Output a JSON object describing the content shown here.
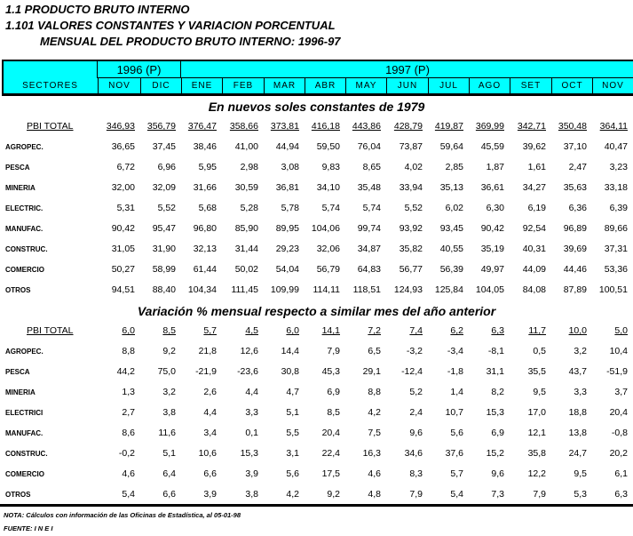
{
  "title": {
    "line1": "1.1  PRODUCTO BRUTO INTERNO",
    "line2": "1.101  VALORES CONSTANTES Y VARIACION PORCENTUAL",
    "line3": "MENSUAL DEL PRODUCTO BRUTO INTERNO: 1996-97"
  },
  "header": {
    "sectores": "SECTORES",
    "year1996": "1996 (P)",
    "year1997": "1997 (P)",
    "months": [
      "NOV",
      "DIC",
      "ENE",
      "FEB",
      "MAR",
      "ABR",
      "MAY",
      "JUN",
      "JUL",
      "AGO",
      "SET",
      "OCT",
      "NOV"
    ],
    "color": "#00ffff"
  },
  "section1": {
    "title": "En nuevos soles constantes de 1979",
    "rows": [
      {
        "label": "PBI TOTAL",
        "values": [
          "346,93",
          "356,79",
          "376,47",
          "358,66",
          "373,81",
          "416,18",
          "443,86",
          "428,79",
          "419,87",
          "369,99",
          "342,71",
          "350,48",
          "364,11"
        ]
      },
      {
        "label": "AGROPEC.",
        "values": [
          "36,65",
          "37,45",
          "38,46",
          "41,00",
          "44,94",
          "59,50",
          "76,04",
          "73,87",
          "59,64",
          "45,59",
          "39,62",
          "37,10",
          "40,47"
        ]
      },
      {
        "label": "PESCA",
        "values": [
          "6,72",
          "6,96",
          "5,95",
          "2,98",
          "3,08",
          "9,83",
          "8,65",
          "4,02",
          "2,85",
          "1,87",
          "1,61",
          "2,47",
          "3,23"
        ]
      },
      {
        "label": "MINERIA",
        "values": [
          "32,00",
          "32,09",
          "31,66",
          "30,59",
          "36,81",
          "34,10",
          "35,48",
          "33,94",
          "35,13",
          "36,61",
          "34,27",
          "35,63",
          "33,18"
        ]
      },
      {
        "label": "ELECTRIC.",
        "values": [
          "5,31",
          "5,52",
          "5,68",
          "5,28",
          "5,78",
          "5,74",
          "5,74",
          "5,52",
          "6,02",
          "6,30",
          "6,19",
          "6,36",
          "6,39"
        ]
      },
      {
        "label": "MANUFAC.",
        "values": [
          "90,42",
          "95,47",
          "96,80",
          "85,90",
          "89,95",
          "104,06",
          "99,74",
          "93,92",
          "93,45",
          "90,42",
          "92,54",
          "96,89",
          "89,66"
        ]
      },
      {
        "label": "CONSTRUC.",
        "values": [
          "31,05",
          "31,90",
          "32,13",
          "31,44",
          "29,23",
          "32,06",
          "34,87",
          "35,82",
          "40,55",
          "35,19",
          "40,31",
          "39,69",
          "37,31"
        ]
      },
      {
        "label": "COMERCIO",
        "values": [
          "50,27",
          "58,99",
          "61,44",
          "50,02",
          "54,04",
          "56,79",
          "64,83",
          "56,77",
          "56,39",
          "49,97",
          "44,09",
          "44,46",
          "53,36"
        ]
      },
      {
        "label": "OTROS",
        "values": [
          "94,51",
          "88,40",
          "104,34",
          "111,45",
          "109,99",
          "114,11",
          "118,51",
          "124,93",
          "125,84",
          "104,05",
          "84,08",
          "87,89",
          "100,51"
        ]
      }
    ]
  },
  "section2": {
    "title": "Variación % mensual respecto a similar mes del año anterior",
    "rows": [
      {
        "label": "PBI TOTAL",
        "values": [
          "6,0",
          "8,5",
          "5,7",
          "4,5",
          "6,0",
          "14,1",
          "7,2",
          "7,4",
          "6,2",
          "6,3",
          "11,7",
          "10,0",
          "5,0"
        ]
      },
      {
        "label": "AGROPEC.",
        "values": [
          "8,8",
          "9,2",
          "21,8",
          "12,6",
          "14,4",
          "7,9",
          "6,5",
          "-3,2",
          "-3,4",
          "-8,1",
          "0,5",
          "3,2",
          "10,4"
        ]
      },
      {
        "label": "PESCA",
        "values": [
          "44,2",
          "75,0",
          "-21,9",
          "-23,6",
          "30,8",
          "45,3",
          "29,1",
          "-12,4",
          "-1,8",
          "31,1",
          "35,5",
          "43,7",
          "-51,9"
        ]
      },
      {
        "label": "MINERIA",
        "values": [
          "1,3",
          "3,2",
          "2,6",
          "4,4",
          "4,7",
          "6,9",
          "8,8",
          "5,2",
          "1,4",
          "8,2",
          "9,5",
          "3,3",
          "3,7"
        ]
      },
      {
        "label": "ELECTRICI",
        "values": [
          "2,7",
          "3,8",
          "4,4",
          "3,3",
          "5,1",
          "8,5",
          "4,2",
          "2,4",
          "10,7",
          "15,3",
          "17,0",
          "18,8",
          "20,4"
        ]
      },
      {
        "label": "MANUFAC.",
        "values": [
          "8,6",
          "11,6",
          "3,4",
          "0,1",
          "5,5",
          "20,4",
          "7,5",
          "9,6",
          "5,6",
          "6,9",
          "12,1",
          "13,8",
          "-0,8"
        ]
      },
      {
        "label": "CONSTRUC.",
        "values": [
          "-0,2",
          "5,1",
          "10,6",
          "15,3",
          "3,1",
          "22,4",
          "16,3",
          "34,6",
          "37,6",
          "15,2",
          "35,8",
          "24,7",
          "20,2"
        ]
      },
      {
        "label": "COMERCIO",
        "values": [
          "4,6",
          "6,4",
          "6,6",
          "3,9",
          "5,6",
          "17,5",
          "4,6",
          "8,3",
          "5,7",
          "9,6",
          "12,2",
          "9,5",
          "6,1"
        ]
      },
      {
        "label": "OTROS",
        "values": [
          "5,4",
          "6,6",
          "3,9",
          "3,8",
          "4,2",
          "9,2",
          "4,8",
          "7,9",
          "5,4",
          "7,3",
          "7,9",
          "5,3",
          "6,3"
        ]
      }
    ]
  },
  "footer": {
    "note": "NOTA: Cálculos con información de las Oficinas de Estadística, al 05-01-98",
    "source": "FUENTE: I N E I"
  }
}
